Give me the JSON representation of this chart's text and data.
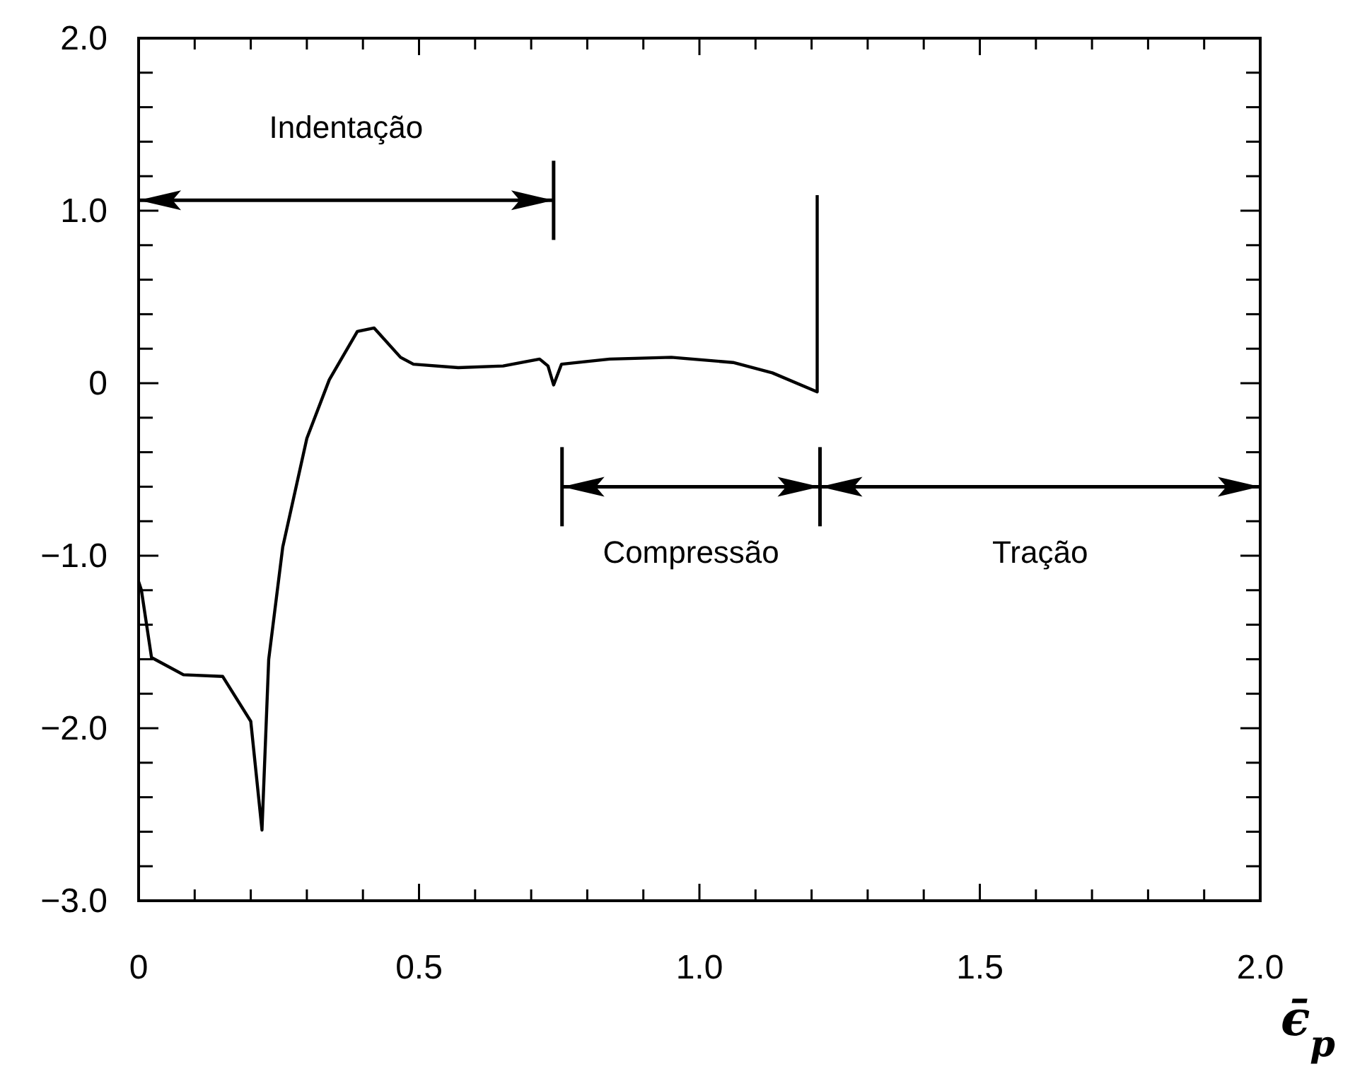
{
  "chart_data": {
    "type": "line",
    "xlabel": "ϵ̄$_{p}$",
    "x": [
      0,
      0.005,
      0.023,
      0.08,
      0.15,
      0.2,
      0.22,
      0.232,
      0.257,
      0.3,
      0.34,
      0.39,
      0.42,
      0.467,
      0.49,
      0.57,
      0.65,
      0.715,
      0.73,
      0.74,
      0.754,
      0.84,
      0.95,
      1.06,
      1.13,
      1.21,
      1.21
    ],
    "series": [
      {
        "color": "#000000",
        "values": [
          -1.15,
          -1.2,
          -1.59,
          -1.69,
          -1.7,
          -1.96,
          -2.59,
          -1.6,
          -0.95,
          -0.32,
          0.02,
          0.3,
          0.32,
          0.15,
          0.11,
          0.09,
          0.1,
          0.14,
          0.1,
          -0.01,
          0.11,
          0.14,
          0.15,
          0.12,
          0.06,
          -0.05,
          1.09
        ]
      }
    ],
    "xlim": [
      0,
      2
    ],
    "ylim": [
      -3,
      2
    ],
    "xticks": [
      0,
      {
        "value": 0.1,
        "label": null
      },
      {
        "value": 0.2,
        "label": null
      },
      {
        "value": 0.3,
        "label": null
      },
      {
        "value": 0.4,
        "label": null
      },
      0.5,
      {
        "value": 0.6,
        "label": null
      },
      {
        "value": 0.7,
        "label": null
      },
      {
        "value": 0.8,
        "label": null
      },
      {
        "value": 0.9,
        "label": null
      },
      {
        "value": 1,
        "label": "1.0"
      },
      {
        "value": 1.1,
        "label": null
      },
      {
        "value": 1.2,
        "label": null
      },
      {
        "value": 1.3,
        "label": null
      },
      {
        "value": 1.4,
        "label": null
      },
      1.5,
      {
        "value": 1.6,
        "label": null
      },
      {
        "value": 1.7,
        "label": null
      },
      {
        "value": 1.8,
        "label": null
      },
      {
        "value": 1.9,
        "label": null
      },
      {
        "value": 2,
        "label": "2.0"
      }
    ],
    "yticks": [
      {
        "value": -3,
        "label": "−3.0"
      },
      {
        "value": -2.8,
        "label": null
      },
      {
        "value": -2.6,
        "label": null
      },
      {
        "value": -2.4,
        "label": null
      },
      {
        "value": -2.2,
        "label": null
      },
      {
        "value": -2,
        "label": "−2.0"
      },
      {
        "value": -1.8,
        "label": null
      },
      {
        "value": -1.6,
        "label": null
      },
      {
        "value": -1.4,
        "label": null
      },
      {
        "value": -1.2,
        "label": null
      },
      {
        "value": -1,
        "label": "−1.0"
      },
      {
        "value": -0.8,
        "label": null
      },
      {
        "value": -0.6,
        "label": null
      },
      {
        "value": -0.4,
        "label": null
      },
      {
        "value": -0.2,
        "label": null
      },
      0,
      {
        "value": 0.2,
        "label": null
      },
      {
        "value": 0.4,
        "label": null
      },
      {
        "value": 0.6,
        "label": null
      },
      {
        "value": 0.8,
        "label": null
      },
      {
        "value": 1,
        "label": "1.0"
      },
      {
        "value": 1.2,
        "label": null
      },
      {
        "value": 1.4,
        "label": null
      },
      {
        "value": 1.6,
        "label": null
      },
      {
        "value": 1.8,
        "label": null
      },
      {
        "value": 2,
        "label": "2.0"
      }
    ],
    "annotations": [
      "Indentação",
      "Compressão",
      "Tração"
    ],
    "grid": false,
    "marker": "none",
    "line_style": "solid"
  }
}
